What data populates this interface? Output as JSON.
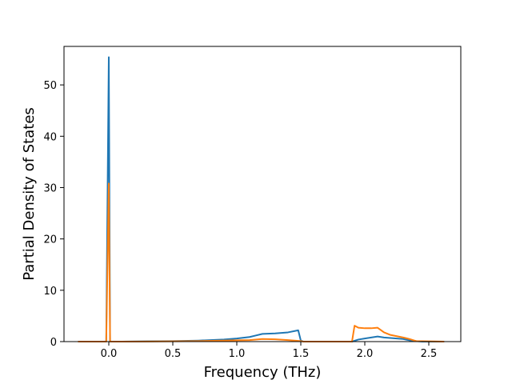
{
  "chart_data": {
    "type": "line",
    "title": "",
    "xlabel": "Frequency (THz)",
    "ylabel": "Partial Density of States",
    "xlim": [
      -0.35,
      2.75
    ],
    "ylim": [
      0,
      57.5
    ],
    "xticks": [
      0.0,
      0.5,
      1.0,
      1.5,
      2.0,
      2.5
    ],
    "xtick_labels": [
      "0.0",
      "0.5",
      "1.0",
      "1.5",
      "2.0",
      "2.5"
    ],
    "yticks": [
      0,
      10,
      20,
      30,
      40,
      50
    ],
    "ytick_labels": [
      "0",
      "10",
      "20",
      "30",
      "40",
      "50"
    ],
    "grid": false,
    "legend": "none",
    "series": [
      {
        "color": "#1f77b4",
        "x": [
          -0.24,
          -0.02,
          0.0,
          0.01,
          0.03,
          0.1,
          0.3,
          0.5,
          0.7,
          0.9,
          1.0,
          1.1,
          1.15,
          1.2,
          1.3,
          1.4,
          1.48,
          1.5,
          1.52,
          1.9,
          1.95,
          2.0,
          2.05,
          2.1,
          2.15,
          2.2,
          2.3,
          2.37,
          2.45,
          2.62
        ],
        "y": [
          0,
          0,
          55.4,
          0,
          0,
          0,
          0.05,
          0.1,
          0.2,
          0.4,
          0.6,
          0.9,
          1.2,
          1.5,
          1.6,
          1.8,
          2.2,
          0.2,
          0,
          0,
          0.4,
          0.6,
          0.8,
          1.0,
          0.8,
          0.7,
          0.5,
          0.15,
          0,
          0
        ]
      },
      {
        "color": "#ff7f0e",
        "x": [
          -0.24,
          -0.02,
          0.0,
          0.01,
          0.03,
          0.1,
          0.3,
          0.5,
          0.7,
          0.9,
          1.0,
          1.1,
          1.2,
          1.3,
          1.4,
          1.5,
          1.52,
          1.9,
          1.92,
          1.95,
          2.0,
          2.05,
          2.1,
          2.15,
          2.2,
          2.3,
          2.35,
          2.4,
          2.62
        ],
        "y": [
          0,
          0,
          30.8,
          0,
          0,
          0,
          0.02,
          0.05,
          0.1,
          0.2,
          0.25,
          0.3,
          0.5,
          0.45,
          0.3,
          0.1,
          0,
          0,
          3.1,
          2.7,
          2.6,
          2.6,
          2.7,
          1.8,
          1.3,
          0.8,
          0.5,
          0.1,
          0
        ]
      }
    ]
  }
}
